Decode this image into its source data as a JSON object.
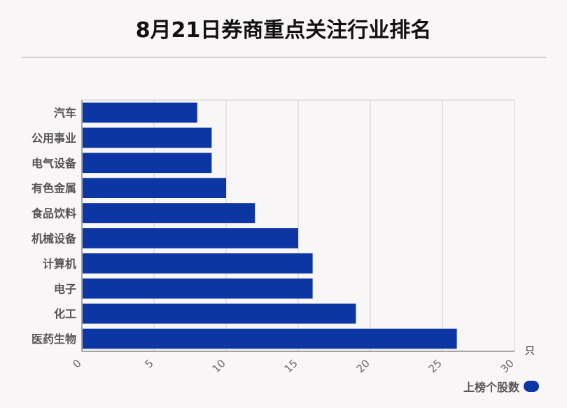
{
  "chart_data": {
    "type": "bar",
    "orientation": "horizontal",
    "title": "8月21日券商重点关注行业排名",
    "categories": [
      "汽车",
      "公用事业",
      "电气设备",
      "有色金属",
      "食品饮料",
      "机械设备",
      "计算机",
      "电子",
      "化工",
      "医药生物"
    ],
    "series": [
      {
        "name": "上榜个股数",
        "values": [
          8,
          9,
          9,
          10,
          12,
          15,
          16,
          16,
          19,
          26
        ],
        "color": "#0b36a3"
      }
    ],
    "xlim": [
      0,
      30
    ],
    "xticks": [
      "0",
      "5",
      "10",
      "15",
      "20",
      "25",
      "30"
    ],
    "x_unit": "只",
    "grid": true,
    "legend_position": "bottom-right"
  }
}
